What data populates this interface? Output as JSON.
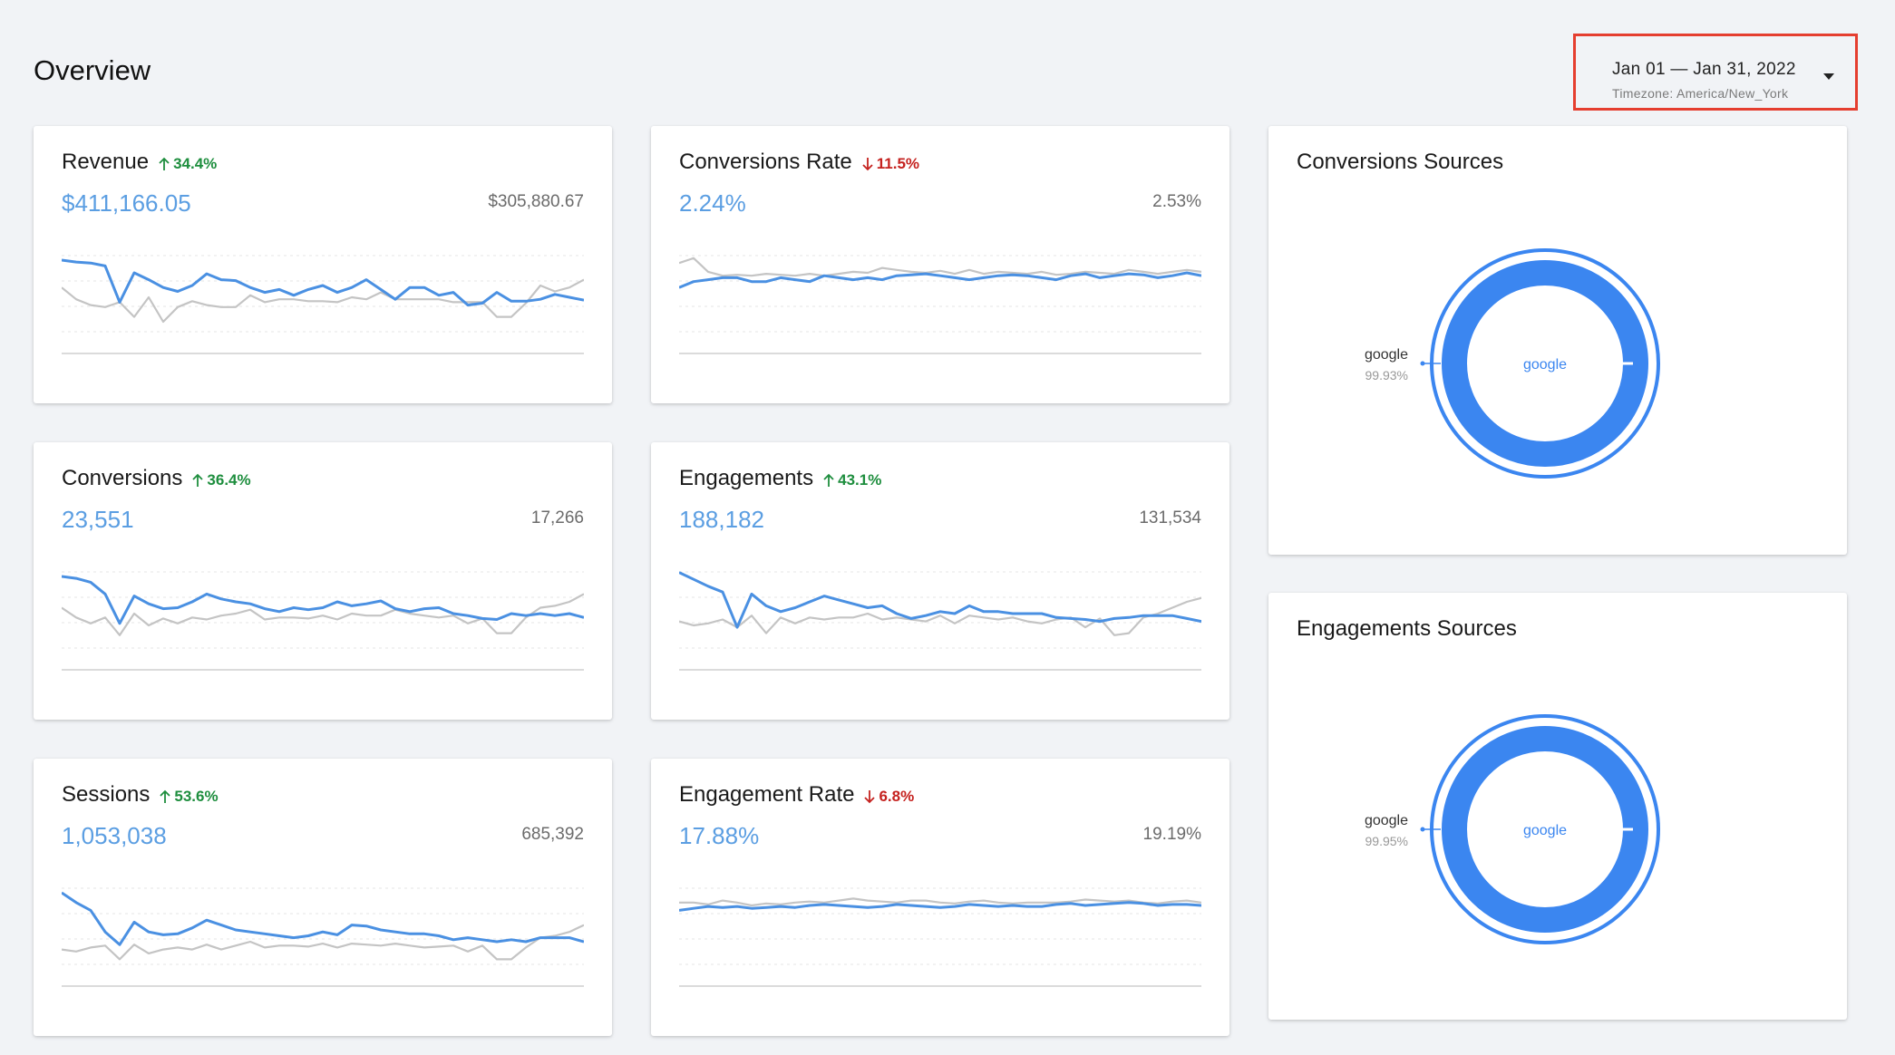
{
  "page": {
    "title": "Overview"
  },
  "date_picker": {
    "range": "Jan 01  —  Jan 31, 2022",
    "timezone": "Timezone: America/New_York"
  },
  "colors": {
    "current": "#4a90e2",
    "previous": "#c4c4c4",
    "up": "#1e8e3e",
    "down": "#c5221f",
    "donut": "#3b86f0"
  },
  "metrics": [
    {
      "title": "Revenue",
      "delta": "34.4%",
      "direction": "up",
      "current": "$411,166.05",
      "previous": "$305,880.67",
      "series_current": [
        0.88,
        0.86,
        0.85,
        0.82,
        0.45,
        0.75,
        0.68,
        0.6,
        0.56,
        0.62,
        0.74,
        0.68,
        0.67,
        0.6,
        0.55,
        0.58,
        0.52,
        0.58,
        0.62,
        0.55,
        0.6,
        0.68,
        0.58,
        0.48,
        0.6,
        0.6,
        0.52,
        0.55,
        0.42,
        0.44,
        0.55,
        0.46,
        0.46,
        0.48,
        0.53,
        0.5,
        0.47
      ],
      "series_previous": [
        0.6,
        0.48,
        0.42,
        0.4,
        0.45,
        0.3,
        0.5,
        0.25,
        0.4,
        0.46,
        0.42,
        0.4,
        0.4,
        0.52,
        0.45,
        0.48,
        0.48,
        0.46,
        0.46,
        0.45,
        0.5,
        0.48,
        0.55,
        0.48,
        0.48,
        0.48,
        0.48,
        0.45,
        0.45,
        0.45,
        0.3,
        0.3,
        0.44,
        0.62,
        0.56,
        0.6,
        0.68
      ]
    },
    {
      "title": "Conversions Rate",
      "delta": "11.5%",
      "direction": "down",
      "current": "2.24%",
      "previous": "2.53%",
      "series_current": [
        0.6,
        0.66,
        0.68,
        0.7,
        0.7,
        0.66,
        0.66,
        0.7,
        0.68,
        0.66,
        0.72,
        0.7,
        0.68,
        0.7,
        0.68,
        0.72,
        0.73,
        0.74,
        0.72,
        0.7,
        0.68,
        0.7,
        0.72,
        0.73,
        0.72,
        0.7,
        0.68,
        0.72,
        0.74,
        0.7,
        0.72,
        0.74,
        0.73,
        0.7,
        0.72,
        0.75,
        0.72
      ],
      "series_previous": [
        0.85,
        0.9,
        0.76,
        0.72,
        0.73,
        0.72,
        0.74,
        0.73,
        0.72,
        0.74,
        0.72,
        0.74,
        0.76,
        0.75,
        0.8,
        0.78,
        0.76,
        0.75,
        0.77,
        0.74,
        0.78,
        0.74,
        0.76,
        0.75,
        0.74,
        0.76,
        0.73,
        0.74,
        0.76,
        0.75,
        0.74,
        0.78,
        0.76,
        0.74,
        0.76,
        0.78,
        0.76
      ]
    },
    {
      "title": "Conversions",
      "delta": "36.4%",
      "direction": "up",
      "current": "23,551",
      "previous": "17,266",
      "series_current": [
        0.88,
        0.86,
        0.82,
        0.7,
        0.4,
        0.68,
        0.6,
        0.55,
        0.56,
        0.62,
        0.7,
        0.65,
        0.62,
        0.6,
        0.55,
        0.52,
        0.56,
        0.54,
        0.56,
        0.62,
        0.58,
        0.6,
        0.63,
        0.55,
        0.52,
        0.55,
        0.56,
        0.5,
        0.48,
        0.45,
        0.44,
        0.5,
        0.48,
        0.5,
        0.48,
        0.5,
        0.46
      ],
      "series_previous": [
        0.56,
        0.46,
        0.4,
        0.46,
        0.28,
        0.5,
        0.38,
        0.45,
        0.4,
        0.46,
        0.44,
        0.48,
        0.5,
        0.54,
        0.44,
        0.46,
        0.46,
        0.45,
        0.48,
        0.44,
        0.5,
        0.48,
        0.48,
        0.54,
        0.5,
        0.48,
        0.46,
        0.48,
        0.4,
        0.45,
        0.3,
        0.3,
        0.46,
        0.56,
        0.58,
        0.62,
        0.7
      ]
    },
    {
      "title": "Engagements",
      "delta": "43.1%",
      "direction": "up",
      "current": "188,182",
      "previous": "131,534",
      "series_current": [
        0.92,
        0.85,
        0.78,
        0.72,
        0.36,
        0.7,
        0.58,
        0.52,
        0.56,
        0.62,
        0.68,
        0.64,
        0.6,
        0.56,
        0.58,
        0.5,
        0.45,
        0.48,
        0.52,
        0.5,
        0.58,
        0.52,
        0.52,
        0.5,
        0.5,
        0.5,
        0.46,
        0.45,
        0.44,
        0.42,
        0.45,
        0.46,
        0.48,
        0.48,
        0.48,
        0.45,
        0.42
      ],
      "series_previous": [
        0.42,
        0.38,
        0.4,
        0.44,
        0.36,
        0.48,
        0.3,
        0.46,
        0.4,
        0.46,
        0.44,
        0.46,
        0.46,
        0.5,
        0.44,
        0.46,
        0.44,
        0.42,
        0.48,
        0.4,
        0.48,
        0.46,
        0.44,
        0.46,
        0.42,
        0.4,
        0.44,
        0.46,
        0.36,
        0.45,
        0.28,
        0.3,
        0.46,
        0.5,
        0.56,
        0.62,
        0.66
      ]
    },
    {
      "title": "Sessions",
      "delta": "53.6%",
      "direction": "up",
      "current": "1,053,038",
      "previous": "685,392",
      "series_current": [
        0.88,
        0.78,
        0.7,
        0.48,
        0.35,
        0.58,
        0.48,
        0.45,
        0.46,
        0.52,
        0.6,
        0.55,
        0.5,
        0.48,
        0.46,
        0.44,
        0.42,
        0.44,
        0.48,
        0.45,
        0.55,
        0.54,
        0.5,
        0.48,
        0.46,
        0.46,
        0.44,
        0.4,
        0.42,
        0.4,
        0.38,
        0.4,
        0.38,
        0.42,
        0.42,
        0.42,
        0.38
      ],
      "series_previous": [
        0.3,
        0.28,
        0.32,
        0.34,
        0.2,
        0.35,
        0.26,
        0.3,
        0.32,
        0.3,
        0.35,
        0.3,
        0.34,
        0.38,
        0.32,
        0.34,
        0.34,
        0.33,
        0.36,
        0.32,
        0.36,
        0.35,
        0.34,
        0.36,
        0.34,
        0.32,
        0.33,
        0.34,
        0.28,
        0.34,
        0.2,
        0.2,
        0.32,
        0.42,
        0.44,
        0.48,
        0.55
      ]
    },
    {
      "title": "Engagement Rate",
      "delta": "6.8%",
      "direction": "down",
      "current": "17.88%",
      "previous": "19.19%",
      "series_current": [
        0.7,
        0.72,
        0.74,
        0.73,
        0.74,
        0.72,
        0.73,
        0.74,
        0.73,
        0.75,
        0.76,
        0.75,
        0.74,
        0.73,
        0.74,
        0.76,
        0.75,
        0.74,
        0.73,
        0.74,
        0.76,
        0.75,
        0.74,
        0.75,
        0.74,
        0.74,
        0.76,
        0.77,
        0.75,
        0.76,
        0.77,
        0.78,
        0.77,
        0.75,
        0.76,
        0.76,
        0.75
      ],
      "series_previous": [
        0.78,
        0.78,
        0.76,
        0.8,
        0.78,
        0.75,
        0.77,
        0.76,
        0.78,
        0.79,
        0.78,
        0.8,
        0.82,
        0.8,
        0.79,
        0.78,
        0.8,
        0.8,
        0.78,
        0.77,
        0.79,
        0.8,
        0.78,
        0.77,
        0.78,
        0.78,
        0.78,
        0.79,
        0.81,
        0.8,
        0.79,
        0.8,
        0.78,
        0.77,
        0.79,
        0.8,
        0.78
      ]
    }
  ],
  "sources": [
    {
      "title": "Conversions Sources",
      "center_label": "google",
      "legend_label": "google",
      "legend_value": "99.93%",
      "share": 0.9993
    },
    {
      "title": "Engagements Sources",
      "center_label": "google",
      "legend_label": "google",
      "legend_value": "99.95%",
      "share": 0.9995
    }
  ]
}
